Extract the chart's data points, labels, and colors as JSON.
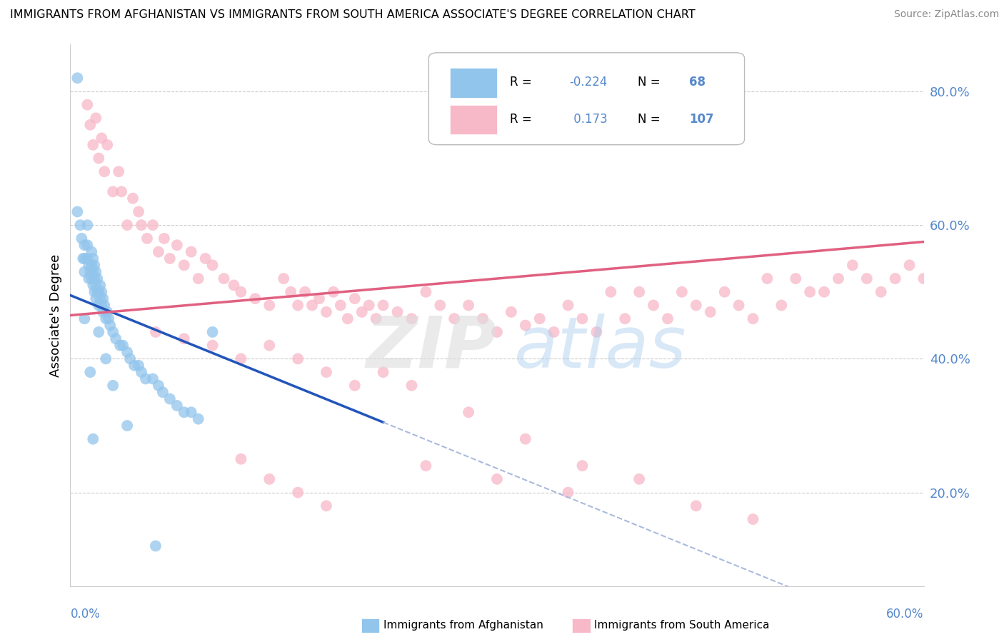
{
  "title": "IMMIGRANTS FROM AFGHANISTAN VS IMMIGRANTS FROM SOUTH AMERICA ASSOCIATE'S DEGREE CORRELATION CHART",
  "source": "Source: ZipAtlas.com",
  "ylabel": "Associate's Degree",
  "ytick_labels": [
    "20.0%",
    "40.0%",
    "60.0%",
    "80.0%"
  ],
  "ytick_vals": [
    0.2,
    0.4,
    0.6,
    0.8
  ],
  "xlim": [
    0.0,
    0.6
  ],
  "ylim": [
    0.06,
    0.87
  ],
  "afghanistan_R": -0.224,
  "afghanistan_N": 68,
  "south_america_R": 0.173,
  "south_america_N": 107,
  "afghanistan_color": "#92C5EC",
  "south_america_color": "#F7B8C8",
  "afghanistan_trend_color": "#2255BB",
  "south_america_trend_color": "#E06080",
  "dashed_color": "#AABBDD",
  "legend_face": "#FFFFFF",
  "legend_edge": "#CCCCCC",
  "tick_color": "#5588CC",
  "watermark_zip_color": "#DDDDDD",
  "watermark_atlas_color": "#AACCEE",
  "afg_trend_x_start": 0.0,
  "afg_trend_x_end": 0.22,
  "afg_trend_y_start": 0.495,
  "afg_trend_y_end": 0.305,
  "sa_trend_x_start": 0.0,
  "sa_trend_x_end": 0.6,
  "sa_trend_y_start": 0.465,
  "sa_trend_y_end": 0.575,
  "afg_dots_x": [
    0.005,
    0.005,
    0.007,
    0.008,
    0.009,
    0.01,
    0.01,
    0.01,
    0.012,
    0.012,
    0.012,
    0.013,
    0.013,
    0.014,
    0.015,
    0.015,
    0.015,
    0.016,
    0.016,
    0.016,
    0.017,
    0.017,
    0.017,
    0.018,
    0.018,
    0.018,
    0.019,
    0.019,
    0.02,
    0.02,
    0.021,
    0.021,
    0.022,
    0.022,
    0.023,
    0.023,
    0.024,
    0.025,
    0.026,
    0.027,
    0.028,
    0.03,
    0.032,
    0.035,
    0.037,
    0.04,
    0.042,
    0.045,
    0.048,
    0.05,
    0.053,
    0.058,
    0.062,
    0.065,
    0.07,
    0.075,
    0.08,
    0.085,
    0.09,
    0.01,
    0.014,
    0.016,
    0.02,
    0.025,
    0.03,
    0.04,
    0.06,
    0.1
  ],
  "afg_dots_y": [
    0.82,
    0.62,
    0.6,
    0.58,
    0.55,
    0.57,
    0.55,
    0.53,
    0.6,
    0.57,
    0.55,
    0.54,
    0.52,
    0.53,
    0.56,
    0.54,
    0.52,
    0.55,
    0.53,
    0.51,
    0.54,
    0.52,
    0.5,
    0.53,
    0.51,
    0.49,
    0.52,
    0.5,
    0.5,
    0.48,
    0.51,
    0.49,
    0.5,
    0.48,
    0.49,
    0.47,
    0.48,
    0.46,
    0.47,
    0.46,
    0.45,
    0.44,
    0.43,
    0.42,
    0.42,
    0.41,
    0.4,
    0.39,
    0.39,
    0.38,
    0.37,
    0.37,
    0.36,
    0.35,
    0.34,
    0.33,
    0.32,
    0.32,
    0.31,
    0.46,
    0.38,
    0.28,
    0.44,
    0.4,
    0.36,
    0.3,
    0.12,
    0.44
  ],
  "sa_dots_x": [
    0.012,
    0.014,
    0.016,
    0.018,
    0.02,
    0.022,
    0.024,
    0.026,
    0.03,
    0.034,
    0.036,
    0.04,
    0.044,
    0.048,
    0.05,
    0.054,
    0.058,
    0.062,
    0.066,
    0.07,
    0.075,
    0.08,
    0.085,
    0.09,
    0.095,
    0.1,
    0.108,
    0.115,
    0.12,
    0.13,
    0.14,
    0.15,
    0.155,
    0.16,
    0.165,
    0.17,
    0.175,
    0.18,
    0.185,
    0.19,
    0.195,
    0.2,
    0.205,
    0.21,
    0.215,
    0.22,
    0.23,
    0.24,
    0.25,
    0.26,
    0.27,
    0.28,
    0.29,
    0.3,
    0.31,
    0.32,
    0.33,
    0.34,
    0.35,
    0.36,
    0.37,
    0.38,
    0.39,
    0.4,
    0.41,
    0.42,
    0.43,
    0.44,
    0.45,
    0.46,
    0.47,
    0.48,
    0.49,
    0.5,
    0.51,
    0.52,
    0.53,
    0.54,
    0.55,
    0.56,
    0.57,
    0.58,
    0.59,
    0.6,
    0.06,
    0.08,
    0.1,
    0.12,
    0.14,
    0.16,
    0.18,
    0.2,
    0.22,
    0.24,
    0.28,
    0.32,
    0.36,
    0.4,
    0.44,
    0.48,
    0.12,
    0.14,
    0.16,
    0.18,
    0.25,
    0.3,
    0.35
  ],
  "sa_dots_y": [
    0.78,
    0.75,
    0.72,
    0.76,
    0.7,
    0.73,
    0.68,
    0.72,
    0.65,
    0.68,
    0.65,
    0.6,
    0.64,
    0.62,
    0.6,
    0.58,
    0.6,
    0.56,
    0.58,
    0.55,
    0.57,
    0.54,
    0.56,
    0.52,
    0.55,
    0.54,
    0.52,
    0.51,
    0.5,
    0.49,
    0.48,
    0.52,
    0.5,
    0.48,
    0.5,
    0.48,
    0.49,
    0.47,
    0.5,
    0.48,
    0.46,
    0.49,
    0.47,
    0.48,
    0.46,
    0.48,
    0.47,
    0.46,
    0.5,
    0.48,
    0.46,
    0.48,
    0.46,
    0.44,
    0.47,
    0.45,
    0.46,
    0.44,
    0.48,
    0.46,
    0.44,
    0.5,
    0.46,
    0.5,
    0.48,
    0.46,
    0.5,
    0.48,
    0.47,
    0.5,
    0.48,
    0.46,
    0.52,
    0.48,
    0.52,
    0.5,
    0.5,
    0.52,
    0.54,
    0.52,
    0.5,
    0.52,
    0.54,
    0.52,
    0.44,
    0.43,
    0.42,
    0.4,
    0.42,
    0.4,
    0.38,
    0.36,
    0.38,
    0.36,
    0.32,
    0.28,
    0.24,
    0.22,
    0.18,
    0.16,
    0.25,
    0.22,
    0.2,
    0.18,
    0.24,
    0.22,
    0.2
  ]
}
